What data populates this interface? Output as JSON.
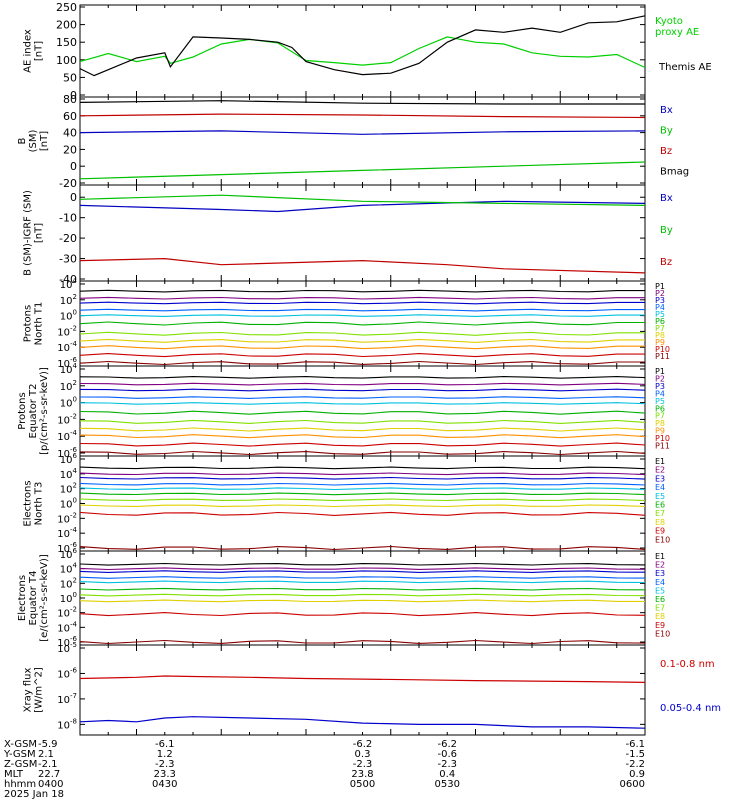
{
  "chart_data": [
    {
      "type": "line",
      "panel": "ae",
      "ylabel": [
        "AE index",
        "[nT]"
      ],
      "ylim": [
        0,
        250
      ],
      "yscale": "linear",
      "yticks": [
        0,
        50,
        100,
        150,
        200,
        250
      ],
      "xlim": [
        400,
        600
      ],
      "legend": "right",
      "series": [
        {
          "name": "Kyoto proxy AE",
          "label_lines": [
            "Kyoto",
            "proxy AE"
          ],
          "color": "#00d000",
          "x": [
            400,
            410,
            420,
            430,
            432,
            440,
            450,
            460,
            470,
            480,
            490,
            500,
            510,
            520,
            530,
            540,
            550,
            560,
            570,
            580,
            590,
            600
          ],
          "y": [
            95,
            118,
            95,
            110,
            90,
            108,
            145,
            158,
            148,
            98,
            92,
            85,
            92,
            132,
            165,
            150,
            145,
            120,
            110,
            108,
            115,
            78
          ]
        },
        {
          "name": "Themis AE",
          "label_lines": [
            "Themis AE"
          ],
          "color": "#000000",
          "x": [
            400,
            405,
            410,
            420,
            430,
            432,
            440,
            450,
            460,
            470,
            475,
            480,
            490,
            500,
            510,
            520,
            530,
            540,
            550,
            560,
            570,
            580,
            590,
            600
          ],
          "y": [
            75,
            55,
            72,
            105,
            120,
            80,
            165,
            162,
            158,
            150,
            135,
            95,
            72,
            58,
            62,
            90,
            150,
            185,
            178,
            190,
            178,
            205,
            208,
            225
          ]
        }
      ]
    },
    {
      "type": "line",
      "panel": "b-sm",
      "ylabel": [
        "B",
        "(SM)",
        "[nT]"
      ],
      "ylim": [
        -20,
        80
      ],
      "yscale": "linear",
      "yticks": [
        -20,
        0,
        20,
        40,
        60,
        80
      ],
      "xlim": [
        400,
        600
      ],
      "legend": "right",
      "series": [
        {
          "name": "Bx",
          "color": "#0000c0",
          "x": [
            400,
            450,
            500,
            550,
            600
          ],
          "y": [
            40,
            42,
            38,
            41,
            42
          ]
        },
        {
          "name": "By",
          "color": "#00c000",
          "x": [
            400,
            450,
            500,
            550,
            600
          ],
          "y": [
            -15,
            -10,
            -5,
            0,
            5
          ]
        },
        {
          "name": "Bz",
          "color": "#c00000",
          "x": [
            400,
            450,
            500,
            550,
            600
          ],
          "y": [
            60,
            62,
            61,
            59,
            58
          ]
        },
        {
          "name": "Bmag",
          "color": "#000000",
          "x": [
            400,
            450,
            500,
            550,
            600
          ],
          "y": [
            76,
            78,
            75,
            74,
            74
          ]
        }
      ]
    },
    {
      "type": "line",
      "panel": "b-sm-igrf",
      "ylabel": [
        "B (SM)-IGRF (SM)",
        "[nT]"
      ],
      "ylim": [
        -40,
        5
      ],
      "yscale": "linear",
      "yticks": [
        -40,
        -30,
        -20,
        -10,
        0
      ],
      "xlim": [
        400,
        600
      ],
      "legend": "right",
      "series": [
        {
          "name": "Bx",
          "color": "#0000c0",
          "x": [
            400,
            450,
            470,
            500,
            550,
            600
          ],
          "y": [
            -4,
            -6,
            -7,
            -4,
            -2,
            -3
          ]
        },
        {
          "name": "By",
          "color": "#00c000",
          "x": [
            400,
            450,
            500,
            550,
            600
          ],
          "y": [
            -1,
            1,
            -2,
            -3,
            -4
          ]
        },
        {
          "name": "Bz",
          "color": "#c00000",
          "x": [
            400,
            430,
            450,
            500,
            530,
            550,
            600
          ],
          "y": [
            -31,
            -30,
            -33,
            -31,
            -33,
            -35,
            -37
          ]
        }
      ]
    },
    {
      "type": "line",
      "panel": "protons-north",
      "ylabel": [
        "Protons",
        "North T1"
      ],
      "ylim": [
        -6,
        4
      ],
      "yscale": "log",
      "ytick_exponents": [
        -6,
        -4,
        -2,
        0,
        2,
        4
      ],
      "xlim": [
        400,
        600
      ],
      "legend": "right",
      "channels": [
        {
          "name": "P1",
          "color": "#000000",
          "log10": 3.1
        },
        {
          "name": "P2",
          "color": "#800080",
          "log10": 2.2
        },
        {
          "name": "P3",
          "color": "#0000cc",
          "log10": 1.6
        },
        {
          "name": "P4",
          "color": "#0060ff",
          "log10": 0.7
        },
        {
          "name": "P5",
          "color": "#00c0e0",
          "log10": 0.0
        },
        {
          "name": "P6",
          "color": "#00b000",
          "log10": -1.0
        },
        {
          "name": "P7",
          "color": "#80e000",
          "log10": -2.3
        },
        {
          "name": "P8",
          "color": "#e0d000",
          "log10": -3.2
        },
        {
          "name": "P9",
          "color": "#ff9000",
          "log10": -4.0
        },
        {
          "name": "P10",
          "color": "#cc0000",
          "log10": -5.0
        },
        {
          "name": "P11",
          "color": "#880000",
          "log10": -6.0
        }
      ]
    },
    {
      "type": "line",
      "panel": "protons-equator",
      "ylabel": [
        "Protons",
        "Equator T2",
        "[p/(cm²-s-sr-keV)]"
      ],
      "ylim": [
        -6,
        4
      ],
      "yscale": "log",
      "ytick_exponents": [
        -6,
        -4,
        -2,
        0,
        2,
        4
      ],
      "xlim": [
        400,
        600
      ],
      "legend": "right",
      "channels": [
        {
          "name": "P1",
          "color": "#000000",
          "log10": 3.0
        },
        {
          "name": "P2",
          "color": "#800080",
          "log10": 2.2
        },
        {
          "name": "P3",
          "color": "#0000cc",
          "log10": 1.5
        },
        {
          "name": "P4",
          "color": "#0060ff",
          "log10": 0.6
        },
        {
          "name": "P5",
          "color": "#00c0e0",
          "log10": -0.1
        },
        {
          "name": "P6",
          "color": "#00b000",
          "log10": -1.2
        },
        {
          "name": "P7",
          "color": "#80e000",
          "log10": -2.3
        },
        {
          "name": "P8",
          "color": "#e0d000",
          "log10": -3.2
        },
        {
          "name": "P9",
          "color": "#ff9000",
          "log10": -4.0
        },
        {
          "name": "P10",
          "color": "#cc0000",
          "log10": -5.0
        },
        {
          "name": "P11",
          "color": "#880000",
          "log10": -6.0
        }
      ]
    },
    {
      "type": "line",
      "panel": "electrons-north",
      "ylabel": [
        "Electrons",
        "North T3"
      ],
      "ylim": [
        -6,
        6
      ],
      "yscale": "log",
      "ytick_exponents": [
        -6,
        -4,
        -2,
        0,
        2,
        4,
        6
      ],
      "xlim": [
        400,
        600
      ],
      "legend": "right",
      "channels": [
        {
          "name": "E1",
          "color": "#000000",
          "log10": 4.8
        },
        {
          "name": "E2",
          "color": "#800080",
          "log10": 4.0
        },
        {
          "name": "E3",
          "color": "#0000cc",
          "log10": 3.4
        },
        {
          "name": "E4",
          "color": "#0060ff",
          "log10": 2.6
        },
        {
          "name": "E5",
          "color": "#00c0e0",
          "log10": 2.0
        },
        {
          "name": "E6",
          "color": "#00b000",
          "log10": 1.3
        },
        {
          "name": "E7",
          "color": "#80e000",
          "log10": 0.5
        },
        {
          "name": "E8",
          "color": "#e0d000",
          "log10": -0.3
        },
        {
          "name": "E9",
          "color": "#cc0000",
          "log10": -1.4
        },
        {
          "name": "E10",
          "color": "#880000",
          "log10": -6.0
        }
      ]
    },
    {
      "type": "line",
      "panel": "electrons-equator",
      "ylabel": [
        "Electrons",
        "Equator T4",
        "[e/(cm²-s-sr-keV)]"
      ],
      "ylim": [
        -6,
        6
      ],
      "yscale": "log",
      "ytick_exponents": [
        -6,
        -4,
        -2,
        0,
        2,
        4,
        6
      ],
      "xlim": [
        400,
        600
      ],
      "legend": "right",
      "channels": [
        {
          "name": "E1",
          "color": "#000000",
          "log10": 4.6
        },
        {
          "name": "E2",
          "color": "#800080",
          "log10": 4.0
        },
        {
          "name": "E3",
          "color": "#0000cc",
          "log10": 3.6
        },
        {
          "name": "E4",
          "color": "#0060ff",
          "log10": 2.8
        },
        {
          "name": "E5",
          "color": "#00c0e0",
          "log10": 2.2
        },
        {
          "name": "E6",
          "color": "#00b000",
          "log10": 1.2
        },
        {
          "name": "E7",
          "color": "#80e000",
          "log10": 0.4
        },
        {
          "name": "E8",
          "color": "#e0d000",
          "log10": -0.4
        },
        {
          "name": "E9",
          "color": "#cc0000",
          "log10": -2.2
        },
        {
          "name": "E10",
          "color": "#880000",
          "log10": -6.0
        }
      ]
    },
    {
      "type": "line",
      "panel": "xray",
      "ylabel": [
        "Xray flux",
        "[W/m^2]"
      ],
      "ylim": [
        -8.3,
        -5
      ],
      "yscale": "log",
      "ytick_exponents": [
        -8,
        -7,
        -6,
        -5
      ],
      "xlim": [
        400,
        600
      ],
      "legend": "right",
      "series": [
        {
          "name": "0.1-0.8 nm",
          "color": "#cc0000",
          "x": [
            400,
            420,
            430,
            440,
            460,
            480,
            500,
            520,
            540,
            560,
            580,
            600
          ],
          "y": [
            -6.2,
            -6.15,
            -6.1,
            -6.12,
            -6.15,
            -6.2,
            -6.22,
            -6.25,
            -6.28,
            -6.3,
            -6.32,
            -6.35
          ]
        },
        {
          "name": "0.05-0.4 nm",
          "color": "#0000cc",
          "x": [
            400,
            410,
            420,
            430,
            440,
            460,
            480,
            500,
            520,
            540,
            560,
            580,
            600
          ],
          "y": [
            -7.9,
            -7.85,
            -7.9,
            -7.75,
            -7.7,
            -7.75,
            -7.8,
            -7.95,
            -8.0,
            -8.0,
            -8.1,
            -8.1,
            -8.15
          ]
        }
      ]
    }
  ],
  "ephemeris": {
    "labels": [
      "X-GSM",
      "Y-GSM",
      "Z-GSM",
      "MLT",
      "hhmm"
    ],
    "columns": [
      {
        "x": 400,
        "values": [
          "-5.9",
          "2.1",
          "-2.1",
          "22.7",
          "0400"
        ]
      },
      {
        "x": 430,
        "values": [
          "-6.1",
          "1.2",
          "-2.3",
          "23.3",
          "0430"
        ]
      },
      {
        "x": 500,
        "values": [
          "-6.2",
          "0.3",
          "-2.3",
          "23.8",
          "0500"
        ]
      },
      {
        "x": 530,
        "values": [
          "-6.2",
          "-0.6",
          "-2.3",
          "0.4",
          "0530"
        ]
      },
      {
        "x": 600,
        "values": [
          "-6.1",
          "-1.5",
          "-2.2",
          "0.9",
          "0600"
        ]
      }
    ],
    "date": "2025 Jan 18"
  }
}
